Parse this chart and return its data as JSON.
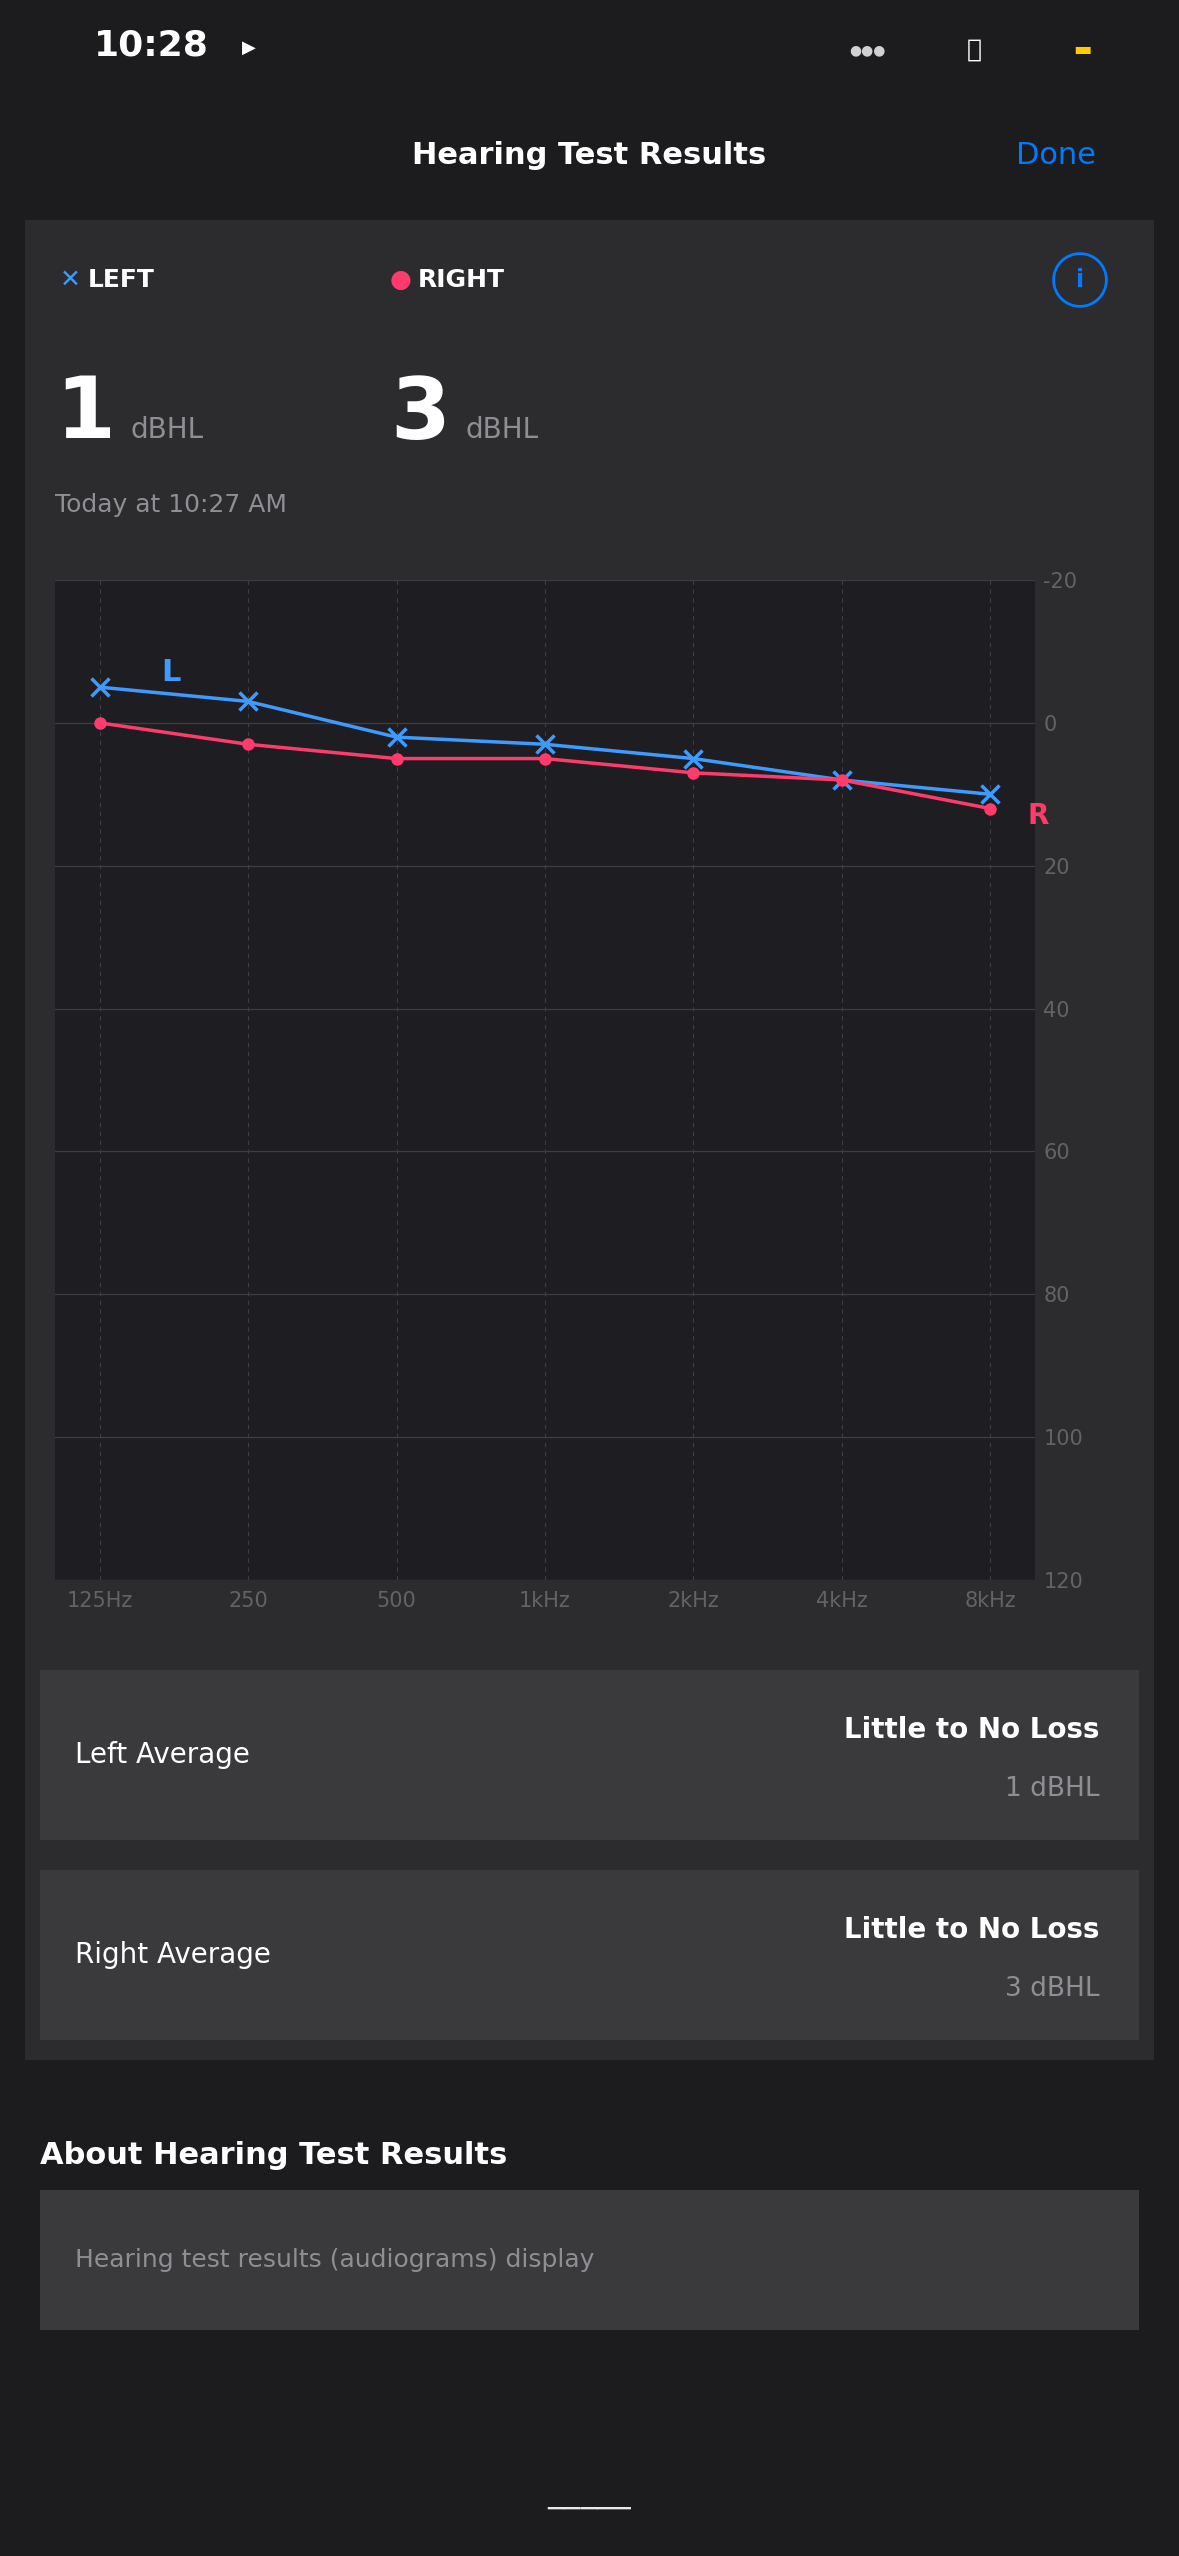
{
  "bg_color": "#1c1c1e",
  "card_color": "#2c2c2e",
  "card2_color": "#3a3a3c",
  "title": "Hearing Test Results",
  "done_text": "Done",
  "time_text": "10:28",
  "left_label": "LEFT",
  "right_label": "RIGHT",
  "left_value": "1",
  "right_value": "3",
  "unit": "dBHL",
  "date_text": "Today at 10:27 AM",
  "left_avg_label": "Left Average",
  "left_avg_result": "Little to No Loss",
  "left_avg_value": "1 dBHL",
  "right_avg_label": "Right Average",
  "right_avg_result": "Little to No Loss",
  "right_avg_value": "3 dBHL",
  "about_title": "About Hearing Test Results",
  "about_body": "Hearing test results (audiograms) display",
  "freq_labels": [
    "125Hz",
    "250",
    "500",
    "1kHz",
    "2kHz",
    "4kHz",
    "8kHz"
  ],
  "left_thresholds": [
    -5,
    -3,
    2,
    3,
    5,
    8,
    10
  ],
  "right_thresholds": [
    0,
    3,
    5,
    5,
    7,
    8,
    12
  ],
  "y_min": -20,
  "y_max": 120,
  "y_ticks": [
    -20,
    0,
    20,
    40,
    60,
    80,
    100,
    120
  ],
  "left_color": "#3d9bff",
  "right_color": "#ff3b6b",
  "grid_hcolor": "#3a3a3c",
  "grid_vcolor": "#3a3a3c",
  "axis_label_color": "#636366",
  "text_color": "#ffffff",
  "subtitle_color": "#8e8e93",
  "blue_color": "#007aff",
  "chart_bg": "#1e1e22"
}
